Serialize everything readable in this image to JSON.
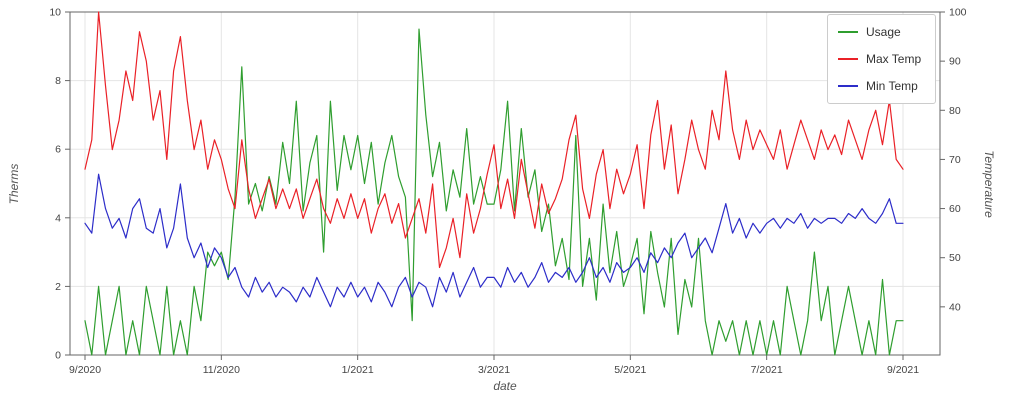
{
  "chart_data": {
    "type": "line",
    "title": "",
    "xlabel": "date",
    "ylabel_left": "Therms",
    "ylabel_right": "Temperature",
    "grid": true,
    "legend_position": "top-right",
    "x_range_months": [
      0,
      12
    ],
    "x_ticks": [
      {
        "month": 0,
        "label": "9/2020"
      },
      {
        "month": 2,
        "label": "11/2020"
      },
      {
        "month": 4,
        "label": "1/2021"
      },
      {
        "month": 6,
        "label": "3/2021"
      },
      {
        "month": 8,
        "label": "5/2021"
      },
      {
        "month": 10,
        "label": "7/2021"
      },
      {
        "month": 12,
        "label": "9/2021"
      }
    ],
    "ylim_left": [
      0,
      10
    ],
    "yticks_left": [
      0,
      2,
      4,
      6,
      8,
      10
    ],
    "ylim_right": [
      30.2,
      100
    ],
    "yticks_right": [
      40,
      50,
      60,
      70,
      80,
      90,
      100
    ],
    "colors": {
      "grid": "#e5e5e5",
      "axis": "#666666",
      "tick_label": "#444444",
      "background": "#ffffff"
    },
    "series": [
      {
        "name": "Usage",
        "color": "#2f9e2f",
        "axis": "left",
        "unit": "therms",
        "values": [
          1,
          0,
          2,
          0,
          1,
          2,
          0,
          1,
          0,
          2,
          1,
          0,
          2,
          0,
          1,
          0,
          2,
          1,
          3,
          2.6,
          3,
          2.2,
          4.6,
          8.4,
          4.4,
          5,
          4.2,
          5.2,
          4.4,
          6.2,
          5,
          7.4,
          4.2,
          5.6,
          6.4,
          3,
          7.4,
          4.8,
          6.4,
          5.4,
          6.4,
          5,
          6.2,
          4.4,
          5.6,
          6.4,
          5.2,
          4.6,
          1,
          9.5,
          7,
          5.2,
          6.2,
          4.2,
          5.4,
          4.6,
          6.6,
          4.4,
          5.2,
          4.4,
          4.4,
          5.4,
          7.4,
          4.2,
          6.6,
          4.6,
          5.4,
          3.6,
          4.4,
          2.6,
          3.4,
          2.2,
          6.4,
          2,
          3.4,
          1.6,
          4.4,
          2.4,
          3.6,
          2,
          2.6,
          3.4,
          1.2,
          3.6,
          2.4,
          1.4,
          3.4,
          0.6,
          2.2,
          1.4,
          3.4,
          1,
          0,
          1,
          0.4,
          1,
          0,
          1,
          0,
          1,
          0,
          1,
          0,
          2,
          1,
          0,
          1,
          3,
          1,
          2,
          0,
          1,
          2,
          1,
          0,
          1,
          0,
          2.2,
          0,
          1,
          1
        ]
      },
      {
        "name": "Max Temp",
        "color": "#ea2127",
        "axis": "right",
        "unit": "F",
        "values": [
          68,
          74,
          100,
          85,
          72,
          78,
          88,
          82,
          96,
          90,
          78,
          84,
          70,
          88,
          95,
          82,
          72,
          78,
          68,
          74,
          70,
          64,
          60,
          74,
          64,
          58,
          62,
          66,
          60,
          64,
          60,
          64,
          58,
          62,
          66,
          60,
          57,
          62,
          58,
          63,
          58,
          62,
          55,
          60,
          63,
          57,
          61,
          54,
          58,
          62,
          55,
          65,
          48,
          52,
          58,
          50,
          63,
          55,
          60,
          67,
          73,
          60,
          66,
          58,
          70,
          63,
          56,
          65,
          59,
          62,
          66,
          74,
          79,
          64,
          58,
          67,
          72,
          60,
          68,
          63,
          67,
          73,
          60,
          75,
          82,
          68,
          77,
          63,
          70,
          78,
          72,
          68,
          80,
          74,
          88,
          76,
          70,
          78,
          72,
          76,
          73,
          70,
          76,
          68,
          73,
          78,
          74,
          70,
          76,
          72,
          75,
          71,
          78,
          74,
          70,
          76,
          80,
          73,
          82,
          70,
          68
        ]
      },
      {
        "name": "Min Temp",
        "color": "#2d2dc9",
        "axis": "right",
        "unit": "F",
        "values": [
          57,
          55,
          67,
          60,
          56,
          58,
          54,
          60,
          62,
          56,
          55,
          60,
          52,
          56,
          65,
          54,
          50,
          53,
          48,
          52,
          50,
          46,
          48,
          44,
          42,
          46,
          43,
          45,
          42,
          44,
          43,
          41,
          44,
          42,
          46,
          43,
          40,
          44,
          42,
          45,
          42,
          44,
          41,
          45,
          43,
          40,
          44,
          46,
          42,
          45,
          44,
          40,
          46,
          43,
          47,
          42,
          45,
          48,
          44,
          46,
          46,
          44,
          48,
          45,
          47,
          44,
          46,
          49,
          45,
          47,
          46,
          48,
          45,
          47,
          50,
          46,
          48,
          45,
          49,
          47,
          48,
          50,
          47,
          51,
          49,
          52,
          50,
          53,
          55,
          50,
          52,
          54,
          51,
          56,
          61,
          55,
          58,
          54,
          57,
          55,
          57,
          58,
          56,
          58,
          57,
          59,
          56,
          58,
          57,
          58,
          58,
          57,
          59,
          58,
          60,
          58,
          57,
          59,
          62,
          57,
          57
        ]
      }
    ]
  }
}
